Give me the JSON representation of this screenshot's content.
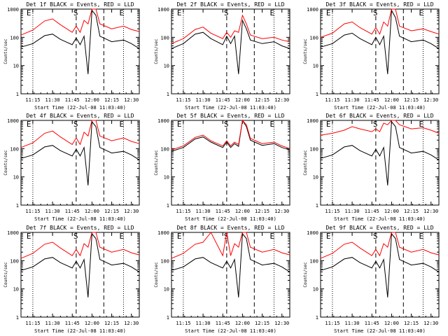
{
  "charts": {
    "events_color": "#000000",
    "lld_color": "#ff0000",
    "ylabel": "Counts/sec",
    "xlabel": "Start Time (22-Jul-08 11:03:40)",
    "xticks": [
      "11:15",
      "11:30",
      "11:45",
      "12:00",
      "12:15",
      "12:30"
    ],
    "yticks": [
      "1",
      "10",
      "100",
      "1000"
    ],
    "markers": [
      "E",
      "S",
      "E"
    ],
    "titles": [
      "Det 1f BLACK = Events, RED = LLD",
      "Det 2f BLACK = Events, RED = LLD",
      "Det 3f BLACK = Events, RED = LLD",
      "Det 4f BLACK = Events, RED = LLD",
      "Det 5f BLACK = Events, RED = LLD",
      "Det 6f BLACK = Events, RED = LLD",
      "Det 7f BLACK = Events, RED = LLD",
      "Det 8f BLACK = Events, RED = LLD",
      "Det 9f BLACK = Events, RED = LLD"
    ]
  },
  "chart_data": [
    {
      "type": "line",
      "title": "Det 1f BLACK = Events, RED = LLD",
      "xlabel": "Start Time (22-Jul-08 11:03:40)",
      "ylabel": "Counts/sec",
      "ylim": [
        1,
        1000
      ],
      "y_scale": "log",
      "x": [
        "11:06",
        "11:15",
        "11:24",
        "11:30",
        "11:36",
        "11:45",
        "11:48",
        "11:51",
        "11:54",
        "11:57",
        "12:00",
        "12:03",
        "12:06",
        "12:15",
        "12:24",
        "12:30",
        "12:36"
      ],
      "series": [
        {
          "name": "Events",
          "color": "#000000",
          "values": [
            45,
            60,
            115,
            130,
            85,
            55,
            95,
            55,
            110,
            5,
            900,
            600,
            110,
            70,
            80,
            60,
            40
          ]
        },
        {
          "name": "LLD",
          "color": "#ff0000",
          "values": [
            120,
            180,
            380,
            450,
            280,
            150,
            250,
            150,
            400,
            300,
            1000,
            1000,
            300,
            200,
            250,
            190,
            160
          ]
        }
      ],
      "vlines": {
        "dotted": [
          "11:15",
          "12:24"
        ],
        "dashed": [
          "11:48",
          "12:09"
        ]
      }
    },
    {
      "type": "line",
      "title": "Det 2f BLACK = Events, RED = LLD",
      "xlabel": "Start Time (22-Jul-08 11:03:40)",
      "ylabel": "Counts/sec",
      "ylim": [
        1,
        1000
      ],
      "y_scale": "log",
      "x": [
        "11:06",
        "11:15",
        "11:24",
        "11:30",
        "11:36",
        "11:45",
        "11:48",
        "11:51",
        "11:54",
        "11:57",
        "12:00",
        "12:03",
        "12:06",
        "12:15",
        "12:24",
        "12:30",
        "12:36"
      ],
      "series": [
        {
          "name": "Events",
          "color": "#000000",
          "values": [
            40,
            60,
            130,
            150,
            90,
            55,
            110,
            60,
            110,
            5,
            400,
            200,
            80,
            60,
            70,
            50,
            40
          ]
        },
        {
          "name": "LLD",
          "color": "#ff0000",
          "values": [
            60,
            90,
            190,
            230,
            140,
            90,
            150,
            100,
            170,
            150,
            600,
            300,
            120,
            90,
            100,
            80,
            70
          ]
        }
      ],
      "vlines": {
        "dotted": [
          "11:15",
          "12:24"
        ],
        "dashed": [
          "11:48",
          "12:09"
        ]
      }
    },
    {
      "type": "line",
      "title": "Det 3f BLACK = Events, RED = LLD",
      "xlabel": "Start Time (22-Jul-08 11:03:40)",
      "ylabel": "Counts/sec",
      "ylim": [
        1,
        1000
      ],
      "y_scale": "log",
      "x": [
        "11:06",
        "11:15",
        "11:24",
        "11:30",
        "11:36",
        "11:45",
        "11:48",
        "11:51",
        "11:54",
        "11:57",
        "12:00",
        "12:03",
        "12:06",
        "12:15",
        "12:24",
        "12:30",
        "12:36"
      ],
      "series": [
        {
          "name": "Events",
          "color": "#000000",
          "values": [
            45,
            60,
            120,
            140,
            90,
            55,
            100,
            55,
            110,
            5,
            900,
            500,
            110,
            70,
            80,
            60,
            40
          ]
        },
        {
          "name": "LLD",
          "color": "#ff0000",
          "values": [
            100,
            140,
            300,
            350,
            220,
            130,
            220,
            130,
            350,
            250,
            1000,
            1000,
            250,
            170,
            200,
            160,
            130
          ]
        }
      ],
      "vlines": {
        "dotted": [
          "11:15",
          "12:24"
        ],
        "dashed": [
          "11:48",
          "12:09"
        ]
      }
    },
    {
      "type": "line",
      "title": "Det 4f BLACK = Events, RED = LLD",
      "xlabel": "Start Time (22-Jul-08 11:03:40)",
      "ylabel": "Counts/sec",
      "ylim": [
        1,
        1000
      ],
      "y_scale": "log",
      "x": [
        "11:06",
        "11:15",
        "11:24",
        "11:30",
        "11:36",
        "11:45",
        "11:48",
        "11:51",
        "11:54",
        "11:57",
        "12:00",
        "12:03",
        "12:06",
        "12:15",
        "12:24",
        "12:30",
        "12:36"
      ],
      "series": [
        {
          "name": "Events",
          "color": "#000000",
          "values": [
            45,
            60,
            115,
            130,
            85,
            55,
            95,
            55,
            110,
            5,
            900,
            600,
            110,
            70,
            80,
            60,
            40
          ]
        },
        {
          "name": "LLD",
          "color": "#ff0000",
          "values": [
            110,
            160,
            350,
            420,
            260,
            140,
            240,
            140,
            380,
            280,
            1000,
            1000,
            280,
            190,
            240,
            180,
            150
          ]
        }
      ],
      "vlines": {
        "dotted": [
          "11:15",
          "12:24"
        ],
        "dashed": [
          "11:48",
          "12:09"
        ]
      }
    },
    {
      "type": "line",
      "title": "Det 5f BLACK = Events, RED = LLD",
      "xlabel": "Start Time (22-Jul-08 11:03:40)",
      "ylabel": "Counts/sec",
      "ylim": [
        1,
        1000
      ],
      "y_scale": "log",
      "x": [
        "11:06",
        "11:15",
        "11:24",
        "11:30",
        "11:36",
        "11:45",
        "11:48",
        "11:51",
        "11:54",
        "11:57",
        "12:00",
        "12:03",
        "12:06",
        "12:15",
        "12:24",
        "12:30",
        "12:36"
      ],
      "series": [
        {
          "name": "Events",
          "color": "#000000",
          "values": [
            80,
            110,
            220,
            260,
            170,
            110,
            170,
            110,
            150,
            120,
            1100,
            600,
            200,
            130,
            150,
            110,
            90
          ]
        },
        {
          "name": "LLD",
          "color": "#ff0000",
          "values": [
            90,
            125,
            250,
            300,
            190,
            125,
            190,
            125,
            170,
            140,
            1300,
            700,
            230,
            150,
            170,
            125,
            100
          ]
        }
      ],
      "vlines": {
        "dotted": [
          "11:15",
          "12:24"
        ],
        "dashed": [
          "11:48",
          "12:09"
        ]
      }
    },
    {
      "type": "line",
      "title": "Det 6f BLACK = Events, RED = LLD",
      "xlabel": "Start Time (22-Jul-08 11:03:40)",
      "ylabel": "Counts/sec",
      "ylim": [
        1,
        1000
      ],
      "y_scale": "log",
      "x": [
        "11:06",
        "11:15",
        "11:24",
        "11:30",
        "11:36",
        "11:45",
        "11:48",
        "11:51",
        "11:54",
        "11:57",
        "12:00",
        "12:03",
        "12:06",
        "12:15",
        "12:24",
        "12:30",
        "12:36"
      ],
      "series": [
        {
          "name": "Events",
          "color": "#000000",
          "values": [
            45,
            60,
            115,
            130,
            85,
            55,
            95,
            55,
            110,
            5,
            900,
            600,
            110,
            70,
            80,
            60,
            40
          ]
        },
        {
          "name": "LLD",
          "color": "#ff0000",
          "values": [
            300,
            350,
            450,
            600,
            500,
            400,
            500,
            400,
            800,
            700,
            1000,
            1000,
            700,
            500,
            550,
            450,
            350
          ]
        }
      ],
      "vlines": {
        "dotted": [
          "11:15",
          "12:24"
        ],
        "dashed": [
          "11:48",
          "12:09"
        ]
      }
    },
    {
      "type": "line",
      "title": "Det 7f BLACK = Events, RED = LLD",
      "xlabel": "Start Time (22-Jul-08 11:03:40)",
      "ylabel": "Counts/sec",
      "ylim": [
        1,
        1000
      ],
      "y_scale": "log",
      "x": [
        "11:06",
        "11:15",
        "11:24",
        "11:30",
        "11:36",
        "11:45",
        "11:48",
        "11:51",
        "11:54",
        "11:57",
        "12:00",
        "12:03",
        "12:06",
        "12:15",
        "12:24",
        "12:30",
        "12:36"
      ],
      "series": [
        {
          "name": "Events",
          "color": "#000000",
          "values": [
            45,
            60,
            115,
            130,
            85,
            55,
            95,
            55,
            110,
            5,
            900,
            600,
            110,
            70,
            80,
            60,
            40
          ]
        },
        {
          "name": "LLD",
          "color": "#ff0000",
          "values": [
            120,
            180,
            380,
            450,
            280,
            150,
            250,
            150,
            400,
            300,
            1000,
            1000,
            300,
            200,
            250,
            190,
            160
          ]
        }
      ],
      "vlines": {
        "dotted": [
          "11:15",
          "12:24"
        ],
        "dashed": [
          "11:48",
          "12:09"
        ]
      }
    },
    {
      "type": "line",
      "title": "Det 8f BLACK = Events, RED = LLD",
      "xlabel": "Start Time (22-Jul-08 11:03:40)",
      "ylabel": "Counts/sec",
      "ylim": [
        1,
        1000
      ],
      "y_scale": "log",
      "x": [
        "11:06",
        "11:15",
        "11:24",
        "11:30",
        "11:36",
        "11:45",
        "11:48",
        "11:51",
        "11:54",
        "11:57",
        "12:00",
        "12:03",
        "12:06",
        "12:15",
        "12:24",
        "12:30",
        "12:36"
      ],
      "series": [
        {
          "name": "Events",
          "color": "#000000",
          "values": [
            45,
            60,
            115,
            130,
            85,
            55,
            95,
            55,
            110,
            5,
            900,
            600,
            110,
            70,
            80,
            60,
            40
          ]
        },
        {
          "name": "LLD",
          "color": "#ff0000",
          "values": [
            120,
            180,
            380,
            450,
            1000,
            150,
            1000,
            150,
            400,
            300,
            1000,
            1000,
            300,
            200,
            250,
            190,
            160
          ]
        }
      ],
      "vlines": {
        "dotted": [
          "11:15",
          "12:24"
        ],
        "dashed": [
          "11:48",
          "12:09"
        ]
      }
    },
    {
      "type": "line",
      "title": "Det 9f BLACK = Events, RED = LLD",
      "xlabel": "Start Time (22-Jul-08 11:03:40)",
      "ylabel": "Counts/sec",
      "ylim": [
        1,
        1000
      ],
      "y_scale": "log",
      "x": [
        "11:06",
        "11:15",
        "11:24",
        "11:30",
        "11:36",
        "11:45",
        "11:48",
        "11:51",
        "11:54",
        "11:57",
        "12:00",
        "12:03",
        "12:06",
        "12:15",
        "12:24",
        "12:30",
        "12:36"
      ],
      "series": [
        {
          "name": "Events",
          "color": "#000000",
          "values": [
            45,
            60,
            115,
            130,
            85,
            55,
            95,
            55,
            110,
            5,
            900,
            600,
            110,
            70,
            80,
            60,
            40
          ]
        },
        {
          "name": "LLD",
          "color": "#ff0000",
          "values": [
            120,
            180,
            380,
            450,
            280,
            150,
            250,
            150,
            400,
            300,
            1000,
            1000,
            300,
            200,
            250,
            190,
            160
          ]
        }
      ],
      "vlines": {
        "dotted": [
          "11:15",
          "12:24"
        ],
        "dashed": [
          "11:48",
          "12:09"
        ]
      }
    }
  ]
}
